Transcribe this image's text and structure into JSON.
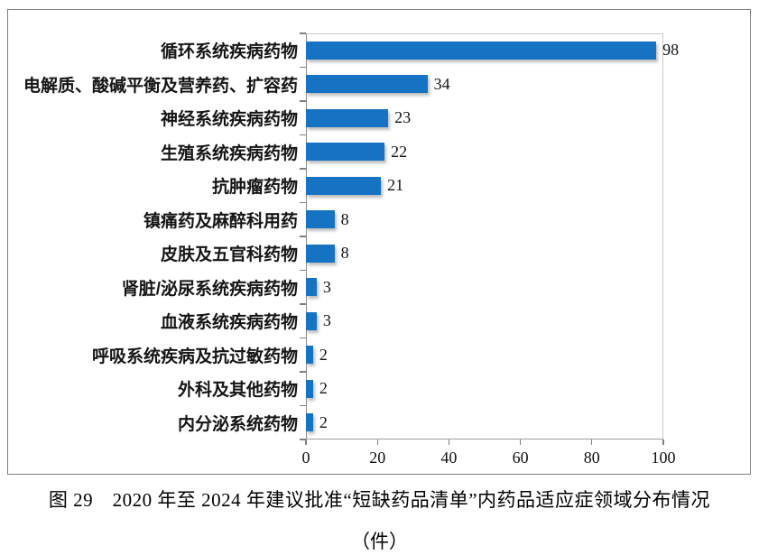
{
  "figure": {
    "caption": {
      "line1": "图 29　2020 年至 2024 年建议批准“短缺药品清单”内药品适应症领域分布情况",
      "line2": "（件）"
    }
  },
  "chart_data": {
    "type": "bar",
    "orientation": "horizontal",
    "title": "",
    "categories": [
      "循环系统疾病药物",
      "电解质、酸碱平衡及营养药、扩容药",
      "神经系统疾病药物",
      "生殖系统疾病药物",
      "抗肿瘤药物",
      "镇痛药及麻醉科用药",
      "皮肤及五官科药物",
      "肾脏/泌尿系统疾病药物",
      "血液系统疾病药物",
      "呼吸系统疾病及抗过敏药物",
      "外科及其他药物",
      "内分泌系统药物"
    ],
    "values": [
      98,
      34,
      23,
      22,
      21,
      8,
      8,
      3,
      3,
      2,
      2,
      2
    ],
    "xticks": [
      "0",
      "20",
      "40",
      "60",
      "80",
      "100"
    ],
    "xlim": [
      0,
      100
    ],
    "bar_color": "#1673C4",
    "data_labels": true,
    "grid": false,
    "legend_position": "none"
  }
}
